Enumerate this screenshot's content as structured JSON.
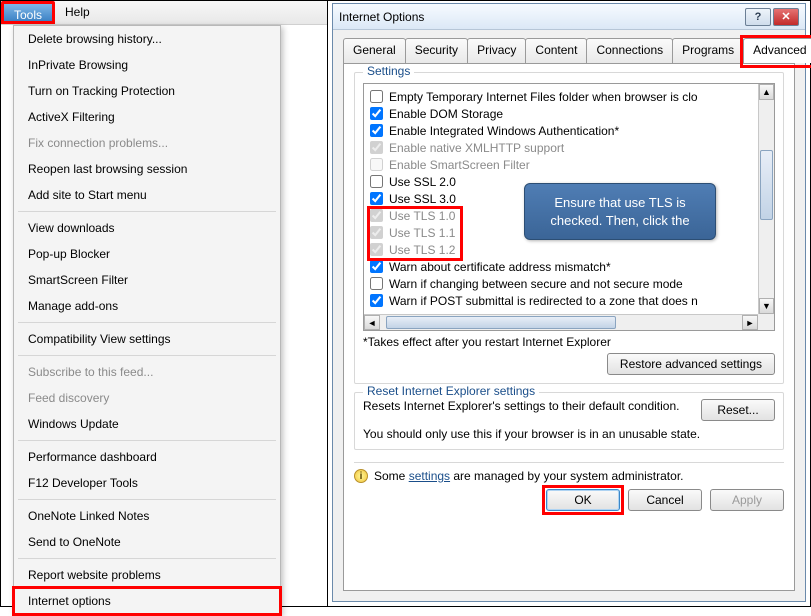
{
  "colors": {
    "red_highlight": "#ff0000",
    "blue_highlight": "#2f6fd0",
    "callout_bg_top": "#4f7db4",
    "callout_bg_bottom": "#3b6597",
    "link": "#1a4e8a",
    "disabled_text": "#8a8a8a"
  },
  "menubar": {
    "tools": "Tools",
    "help": "Help"
  },
  "tools_menu": {
    "items": [
      {
        "label": "Delete browsing history...",
        "disabled": false
      },
      {
        "label": "InPrivate Browsing",
        "disabled": false
      },
      {
        "label": "Turn on Tracking Protection",
        "disabled": false
      },
      {
        "label": "ActiveX Filtering",
        "disabled": false
      },
      {
        "label": "Fix connection problems...",
        "disabled": true
      },
      {
        "label": "Reopen last browsing session",
        "disabled": false
      },
      {
        "label": "Add site to Start menu",
        "disabled": false
      },
      {
        "sep": true
      },
      {
        "label": "View downloads",
        "disabled": false
      },
      {
        "label": "Pop-up Blocker",
        "disabled": false
      },
      {
        "label": "SmartScreen Filter",
        "disabled": false
      },
      {
        "label": "Manage add-ons",
        "disabled": false
      },
      {
        "sep": true
      },
      {
        "label": "Compatibility View settings",
        "disabled": false
      },
      {
        "sep": true
      },
      {
        "label": "Subscribe to this feed...",
        "disabled": true
      },
      {
        "label": "Feed discovery",
        "disabled": true
      },
      {
        "label": "Windows Update",
        "disabled": false
      },
      {
        "sep": true
      },
      {
        "label": "Performance dashboard",
        "disabled": false
      },
      {
        "label": "F12 Developer Tools",
        "disabled": false
      },
      {
        "sep": true
      },
      {
        "label": "OneNote Linked Notes",
        "disabled": false
      },
      {
        "label": "Send to OneNote",
        "disabled": false
      },
      {
        "sep": true
      },
      {
        "label": "Report website problems",
        "disabled": false
      },
      {
        "label": "Internet options",
        "disabled": false
      }
    ]
  },
  "dialog": {
    "title": "Internet Options",
    "tabs": [
      "General",
      "Security",
      "Privacy",
      "Content",
      "Connections",
      "Programs",
      "Advanced"
    ],
    "selected_tab": "Advanced",
    "settings_legend": "Settings",
    "settings_items": [
      {
        "label": "Empty Temporary Internet Files folder when browser is clo",
        "checked": false,
        "disabled": false
      },
      {
        "label": "Enable DOM Storage",
        "checked": true,
        "disabled": false
      },
      {
        "label": "Enable Integrated Windows Authentication*",
        "checked": true,
        "disabled": false
      },
      {
        "label": "Enable native XMLHTTP support",
        "checked": true,
        "disabled": true
      },
      {
        "label": "Enable SmartScreen Filter",
        "checked": false,
        "disabled": true
      },
      {
        "label": "Use SSL 2.0",
        "checked": false,
        "disabled": false
      },
      {
        "label": "Use SSL 3.0",
        "checked": true,
        "disabled": false
      },
      {
        "label": "Use TLS 1.0",
        "checked": true,
        "disabled": true
      },
      {
        "label": "Use TLS 1.1",
        "checked": true,
        "disabled": true
      },
      {
        "label": "Use TLS 1.2",
        "checked": true,
        "disabled": true
      },
      {
        "label": "Warn about certificate address mismatch*",
        "checked": true,
        "disabled": false
      },
      {
        "label": "Warn if changing between secure and not secure mode",
        "checked": false,
        "disabled": false
      },
      {
        "label": "Warn if POST submittal is redirected to a zone that does n",
        "checked": true,
        "disabled": false
      }
    ],
    "restart_hint": "*Takes effect after you restart Internet Explorer",
    "restore_button": "Restore advanced settings",
    "reset_legend": "Reset Internet Explorer settings",
    "reset_text": "Resets Internet Explorer's settings to their default condition.",
    "reset_button": "Reset...",
    "reset_warning": "You should only use this if your browser is in an unusable state.",
    "infobar_pre": "Some ",
    "infobar_link": "settings",
    "infobar_post": " are managed by your system administrator.",
    "ok": "OK",
    "cancel": "Cancel",
    "apply": "Apply"
  },
  "callout": {
    "text": "Ensure that use TLS is checked. Then, click the"
  }
}
